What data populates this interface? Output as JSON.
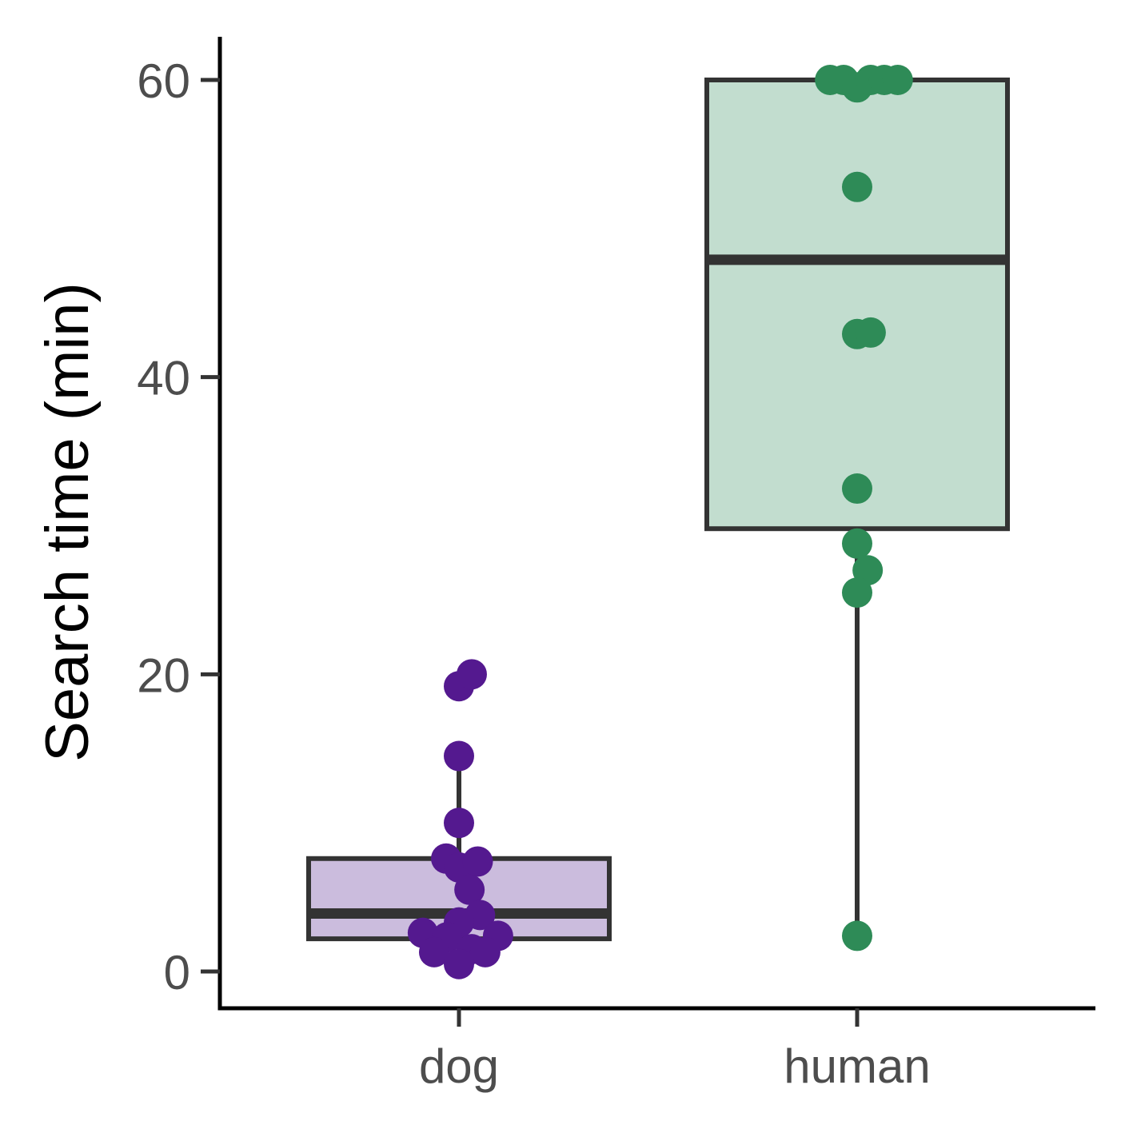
{
  "chart_data": {
    "type": "box",
    "xlabel": "",
    "ylabel": "Search time (min)",
    "ylim": [
      -2.5,
      63
    ],
    "y_ticks": [
      0,
      20,
      40,
      60
    ],
    "categories": [
      "dog",
      "human"
    ],
    "grid": false,
    "legend": "none",
    "boxes": [
      {
        "category": "dog",
        "whisker_low": 0.5,
        "q1": 2.2,
        "median": 3.9,
        "q3": 7.6,
        "whisker_high": 13.7,
        "fill": "#cbbcdd",
        "point_color": "#54198f",
        "points": [
          {
            "y": 19.2,
            "jitter": 0.0
          },
          {
            "y": 20.0,
            "jitter": 0.17
          },
          {
            "y": 14.5,
            "jitter": 0.0
          },
          {
            "y": 10.0,
            "jitter": 0.0
          },
          {
            "y": 7.6,
            "jitter": -0.17
          },
          {
            "y": 7.0,
            "jitter": 0.0
          },
          {
            "y": 7.4,
            "jitter": 0.25
          },
          {
            "y": 5.5,
            "jitter": 0.14
          },
          {
            "y": 3.8,
            "jitter": 0.28
          },
          {
            "y": 3.3,
            "jitter": 0.0
          },
          {
            "y": 2.6,
            "jitter": -0.48
          },
          {
            "y": 2.3,
            "jitter": -0.16
          },
          {
            "y": 2.4,
            "jitter": 0.52
          },
          {
            "y": 1.5,
            "jitter": 0.17
          },
          {
            "y": 1.3,
            "jitter": -0.33
          },
          {
            "y": 1.3,
            "jitter": 0.35
          },
          {
            "y": 0.5,
            "jitter": 0.0
          }
        ]
      },
      {
        "category": "human",
        "whisker_low": 2.4,
        "q1": 29.8,
        "median": 47.9,
        "q3": 60.0,
        "whisker_high": 60.0,
        "fill": "#c2ddcf",
        "point_color": "#2e8b57",
        "points": [
          {
            "y": 60.0,
            "jitter": -0.36
          },
          {
            "y": 60.0,
            "jitter": -0.18
          },
          {
            "y": 59.5,
            "jitter": 0.0
          },
          {
            "y": 60.0,
            "jitter": 0.18
          },
          {
            "y": 60.0,
            "jitter": 0.36
          },
          {
            "y": 60.0,
            "jitter": 0.54
          },
          {
            "y": 52.8,
            "jitter": 0.0
          },
          {
            "y": 42.9,
            "jitter": 0.0
          },
          {
            "y": 43.0,
            "jitter": 0.18
          },
          {
            "y": 32.5,
            "jitter": 0.0
          },
          {
            "y": 28.8,
            "jitter": 0.0
          },
          {
            "y": 27.0,
            "jitter": 0.14
          },
          {
            "y": 25.5,
            "jitter": 0.0
          },
          {
            "y": 2.4,
            "jitter": 0.0
          }
        ]
      }
    ]
  }
}
